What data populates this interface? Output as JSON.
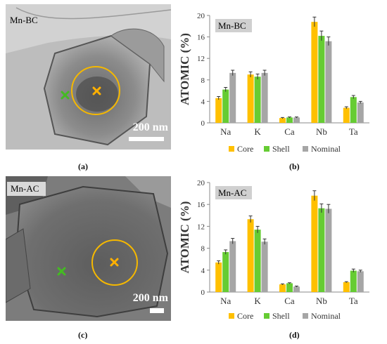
{
  "panels": {
    "a": {
      "label": "(a)",
      "tag": "Mn-BC",
      "scalebar": "200 nm"
    },
    "b": {
      "label": "(b)"
    },
    "c": {
      "label": "(c)",
      "tag": "Mn-AC",
      "scalebar": "200 nm"
    },
    "d": {
      "label": "(d)"
    }
  },
  "colors": {
    "Core": "#ffc000",
    "Shell": "#66cc33",
    "Nominal": "#a6a6a6",
    "core_marker": "#ffb000",
    "shell_marker": "#44bb22"
  },
  "chart_data": [
    {
      "type": "bar",
      "title": "Mn-BC",
      "ylabel": "ATOMIC (%)",
      "categories": [
        "Na",
        "K",
        "Ca",
        "Nb",
        "Ta"
      ],
      "ylim": [
        0,
        20
      ],
      "yticks": [
        0,
        4,
        8,
        12,
        16,
        20
      ],
      "series": [
        {
          "name": "Core",
          "values": [
            4.6,
            9.0,
            0.9,
            18.8,
            2.8
          ],
          "errors": [
            0.3,
            0.5,
            0.1,
            0.9,
            0.2
          ]
        },
        {
          "name": "Shell",
          "values": [
            6.2,
            8.6,
            1.0,
            16.2,
            4.8
          ],
          "errors": [
            0.4,
            0.5,
            0.1,
            0.9,
            0.3
          ]
        },
        {
          "name": "Nominal",
          "values": [
            9.3,
            9.3,
            1.0,
            15.2,
            3.8
          ],
          "errors": [
            0.5,
            0.5,
            0.1,
            0.8,
            0.2
          ]
        }
      ],
      "legend": "bottom"
    },
    {
      "type": "bar",
      "title": "Mn-AC",
      "ylabel": "ATOMIC (%)",
      "categories": [
        "Na",
        "K",
        "Ca",
        "Nb",
        "Ta"
      ],
      "ylim": [
        0,
        20
      ],
      "yticks": [
        0,
        4,
        8,
        12,
        16,
        20
      ],
      "series": [
        {
          "name": "Core",
          "values": [
            5.4,
            13.3,
            1.4,
            17.6,
            1.8
          ],
          "errors": [
            0.3,
            0.6,
            0.1,
            0.9,
            0.1
          ]
        },
        {
          "name": "Shell",
          "values": [
            7.3,
            11.4,
            1.6,
            15.3,
            3.9
          ],
          "errors": [
            0.4,
            0.6,
            0.1,
            0.8,
            0.3
          ]
        },
        {
          "name": "Nominal",
          "values": [
            9.3,
            9.2,
            1.0,
            15.2,
            3.8
          ],
          "errors": [
            0.5,
            0.5,
            0.1,
            0.8,
            0.2
          ]
        }
      ],
      "legend": "bottom"
    }
  ]
}
